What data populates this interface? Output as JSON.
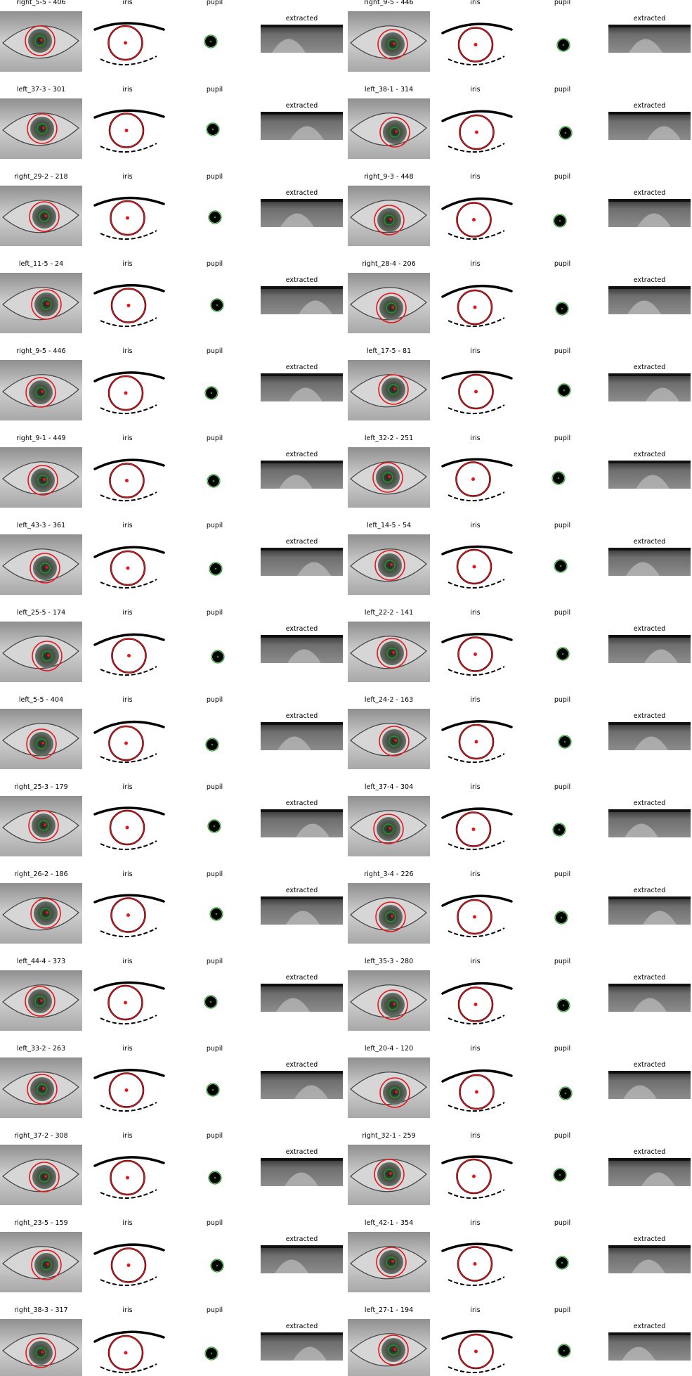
{
  "figure": {
    "column_titles": {
      "iris": "iris",
      "pupil": "pupil",
      "extracted": "extracted"
    },
    "colors": {
      "iris_circle": "#e8141c",
      "pupil_circle": "#1fa21f",
      "center_dot": "#e8141c",
      "eye_skin": "#bdbdbd",
      "iris_fill": "#555d55"
    },
    "rows": [
      {
        "left": {
          "label": "right_5-5 - 406"
        },
        "right": {
          "label": "right_9-5 - 446"
        }
      },
      {
        "left": {
          "label": "left_37-3 - 301"
        },
        "right": {
          "label": "left_38-1 - 314"
        }
      },
      {
        "left": {
          "label": "right_29-2 - 218"
        },
        "right": {
          "label": "right_9-3 - 448"
        }
      },
      {
        "left": {
          "label": "left_11-5 - 24"
        },
        "right": {
          "label": "right_28-4 - 206"
        }
      },
      {
        "left": {
          "label": "right_9-5 - 446"
        },
        "right": {
          "label": "left_17-5 - 81"
        }
      },
      {
        "left": {
          "label": "right_9-1 - 449"
        },
        "right": {
          "label": "left_32-2 - 251"
        }
      },
      {
        "left": {
          "label": "left_43-3 - 361"
        },
        "right": {
          "label": "left_14-5 - 54"
        }
      },
      {
        "left": {
          "label": "left_25-5 - 174"
        },
        "right": {
          "label": "left_22-2 - 141"
        }
      },
      {
        "left": {
          "label": "left_5-5 - 404"
        },
        "right": {
          "label": "left_24-2 - 163"
        }
      },
      {
        "left": {
          "label": "right_25-3 - 179"
        },
        "right": {
          "label": "left_37-4 - 304"
        }
      },
      {
        "left": {
          "label": "right_26-2 - 186"
        },
        "right": {
          "label": "right_3-4 - 226"
        }
      },
      {
        "left": {
          "label": "left_44-4 - 373"
        },
        "right": {
          "label": "left_35-3 - 280"
        }
      },
      {
        "left": {
          "label": "left_33-2 - 263"
        },
        "right": {
          "label": "left_20-4 - 120"
        }
      },
      {
        "left": {
          "label": "right_37-2 - 308"
        },
        "right": {
          "label": "right_32-1 - 259"
        }
      },
      {
        "left": {
          "label": "right_23-5 - 159"
        },
        "right": {
          "label": "left_42-1 - 354"
        }
      },
      {
        "left": {
          "label": "right_38-3 - 317"
        },
        "right": {
          "label": "left_27-1 - 194"
        }
      }
    ]
  }
}
